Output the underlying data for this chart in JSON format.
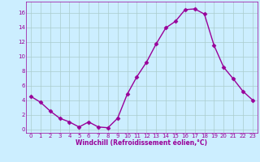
{
  "x": [
    0,
    1,
    2,
    3,
    4,
    5,
    6,
    7,
    8,
    9,
    10,
    11,
    12,
    13,
    14,
    15,
    16,
    17,
    18,
    19,
    20,
    21,
    22,
    23
  ],
  "y": [
    4.5,
    3.7,
    2.5,
    1.5,
    1.0,
    0.3,
    1.0,
    0.3,
    0.2,
    1.5,
    4.8,
    7.2,
    9.2,
    11.7,
    13.9,
    14.8,
    16.4,
    16.5,
    15.8,
    11.5,
    8.5,
    6.9,
    5.2,
    4.0
  ],
  "line_color": "#990099",
  "marker": "D",
  "marker_size": 2.5,
  "bg_color": "#cceeff",
  "grid_color": "#aacccc",
  "xlabel": "Windchill (Refroidissement éolien,°C)",
  "xlabel_color": "#990099",
  "tick_color": "#990099",
  "ylim": [
    -0.5,
    17.5
  ],
  "xlim": [
    -0.5,
    23.5
  ],
  "yticks": [
    0,
    2,
    4,
    6,
    8,
    10,
    12,
    14,
    16
  ],
  "xticks": [
    0,
    1,
    2,
    3,
    4,
    5,
    6,
    7,
    8,
    9,
    10,
    11,
    12,
    13,
    14,
    15,
    16,
    17,
    18,
    19,
    20,
    21,
    22,
    23
  ],
  "tick_fontsize": 5.0,
  "xlabel_fontsize": 5.5,
  "linewidth": 1.0,
  "spine_color": "#990099"
}
